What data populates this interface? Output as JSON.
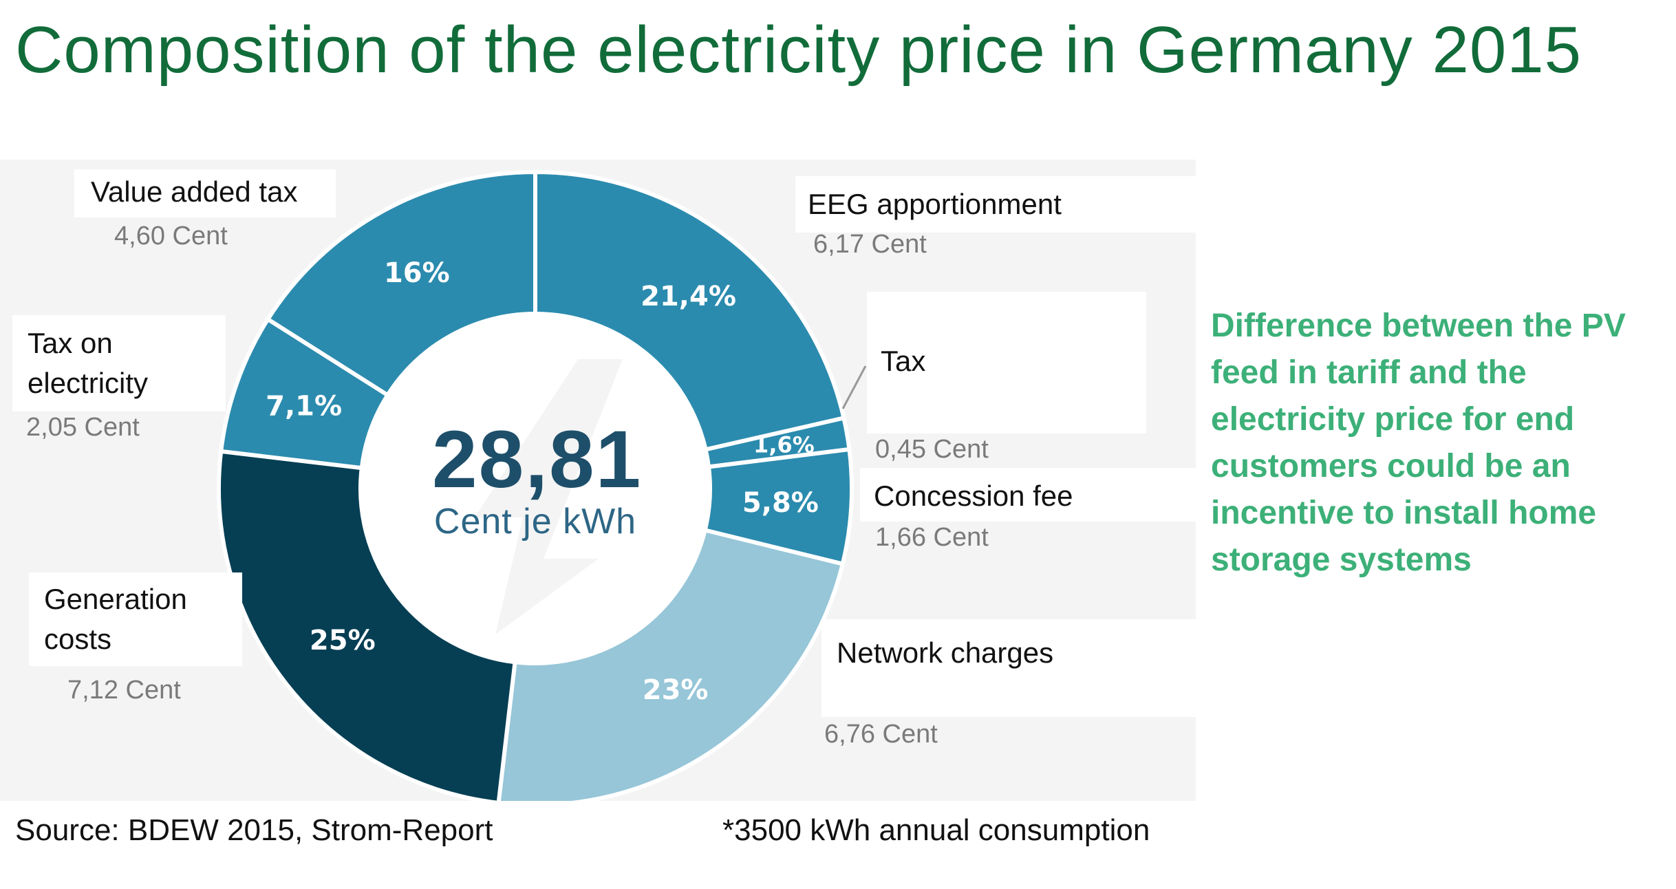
{
  "title": "Composition of the electricity price in Germany 2015",
  "chart_data": {
    "type": "pie",
    "variant": "donut",
    "center_value": "28,81",
    "center_unit": "Cent je kWh",
    "slices": [
      {
        "label": "EEG apportionment",
        "value_cent": 6.17,
        "value_text": "6,17 Cent",
        "percent": 21.4,
        "percent_text": "21,4%",
        "color": "#2b8bae"
      },
      {
        "label": "Tax",
        "value_cent": 0.45,
        "value_text": "0,45 Cent",
        "percent": 1.6,
        "percent_text": "1,6%",
        "color": "#2b8bae"
      },
      {
        "label": "Concession fee",
        "value_cent": 1.66,
        "value_text": "1,66 Cent",
        "percent": 5.8,
        "percent_text": "5,8%",
        "color": "#2b8bae"
      },
      {
        "label": "Network charges",
        "value_cent": 6.76,
        "value_text": "6,76 Cent",
        "percent": 23,
        "percent_text": "23%",
        "color": "#96c6d8"
      },
      {
        "label": "Generation costs",
        "value_cent": 7.12,
        "value_text": "7,12 Cent",
        "percent": 25,
        "percent_text": "25%",
        "color": "#063f54"
      },
      {
        "label": "Tax on electricity",
        "value_cent": 2.05,
        "value_text": "2,05 Cent",
        "percent": 7.1,
        "percent_text": "7,1%",
        "color": "#2b8bae"
      },
      {
        "label": "Value added tax",
        "value_cent": 4.6,
        "value_text": "4,60 Cent",
        "percent": 16,
        "percent_text": "16%",
        "color": "#2b8bae"
      }
    ]
  },
  "labels": {
    "vat": "Value added tax",
    "eeg": "EEG apportionment",
    "tax": "Tax",
    "electricity_tax": "Tax on electricity",
    "concession": "Concession fee",
    "generation": "Generation costs",
    "network": "Network charges"
  },
  "side_note": "Difference between the PV feed in tariff and the electricity price for end customers could be an incentive to install home storage systems",
  "source": "Source:  BDEW  2015, Strom-Report",
  "footnote": "*3500 kWh  annual consumption"
}
